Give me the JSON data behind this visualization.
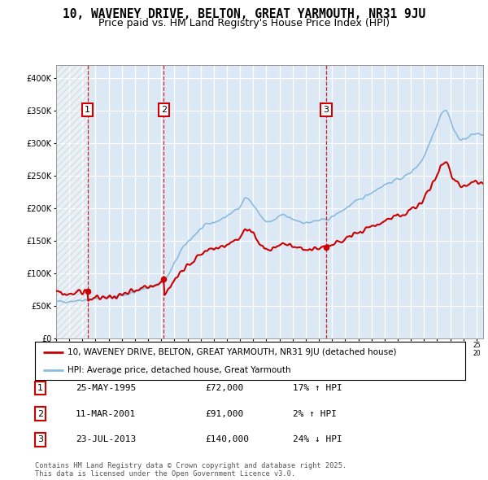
{
  "title_line1": "10, WAVENEY DRIVE, BELTON, GREAT YARMOUTH, NR31 9JU",
  "title_line2": "Price paid vs. HM Land Registry's House Price Index (HPI)",
  "ylim": [
    0,
    420000
  ],
  "yticks": [
    0,
    50000,
    100000,
    150000,
    200000,
    250000,
    300000,
    350000,
    400000
  ],
  "ytick_labels": [
    "£0",
    "£50K",
    "£100K",
    "£150K",
    "£200K",
    "£250K",
    "£300K",
    "£350K",
    "£400K"
  ],
  "hatch_region_end": 1995.4,
  "sale_dates": [
    1995.4,
    2001.2,
    2013.55
  ],
  "sale_prices": [
    72000,
    91000,
    140000
  ],
  "sale_labels": [
    "1",
    "2",
    "3"
  ],
  "legend_line1": "10, WAVENEY DRIVE, BELTON, GREAT YARMOUTH, NR31 9JU (detached house)",
  "legend_line2": "HPI: Average price, detached house, Great Yarmouth",
  "red_color": "#cc0000",
  "blue_color": "#88bbdd",
  "table_data": [
    [
      "1",
      "25-MAY-1995",
      "£72,000",
      "17% ↑ HPI"
    ],
    [
      "2",
      "11-MAR-2001",
      "£91,000",
      "2% ↑ HPI"
    ],
    [
      "3",
      "23-JUL-2013",
      "£140,000",
      "24% ↓ HPI"
    ]
  ],
  "footnote": "Contains HM Land Registry data © Crown copyright and database right 2025.\nThis data is licensed under the Open Government Licence v3.0.",
  "bg_color": "#dce9f5",
  "grid_color": "#ffffff",
  "xmin": 1993.0,
  "xmax": 2025.5
}
